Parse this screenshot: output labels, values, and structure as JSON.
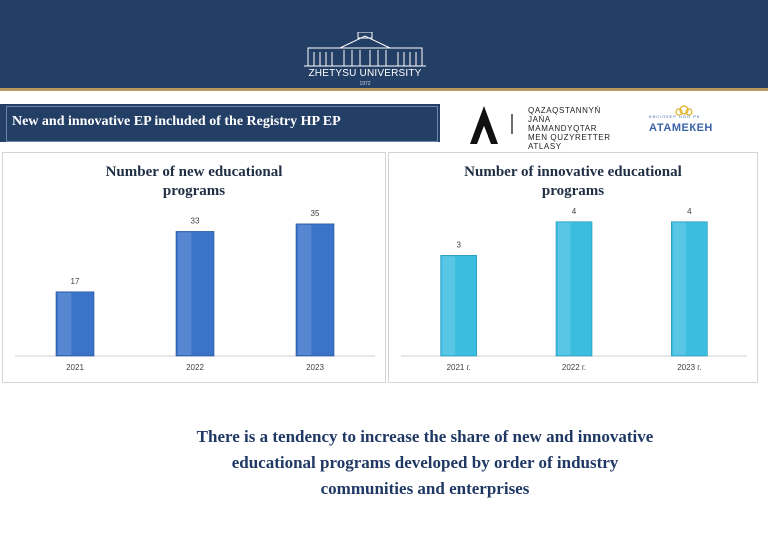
{
  "header": {
    "university_name": "ZHETYSU UNIVERSITY",
    "university_year": "1972",
    "colors": {
      "bar": "#243f66",
      "accent": "#b89a5e"
    }
  },
  "banner": {
    "title": "New and innovative EP  included of the Registry HP EP"
  },
  "partners": {
    "atlas_lines": [
      "QAZAQSTANNYŃ",
      "JAŃA",
      "MAMANDYQTAR",
      "MEN QUZYRETTER",
      "ATLASY"
    ],
    "atameken_top": "КӘСІПКЕР      НОО РК",
    "atameken_name": "АТАМЕКЕН"
  },
  "chart_data": [
    {
      "type": "bar",
      "title": "Number of new educational programs",
      "title_lines": [
        "Number of new educational",
        "programs"
      ],
      "categories": [
        "2021",
        "2022",
        "2023"
      ],
      "values": [
        17,
        33,
        35
      ],
      "ylim": [
        0,
        40
      ],
      "color": "#3a73c8",
      "grid": false,
      "legend": "none"
    },
    {
      "type": "bar",
      "title": "Number of innovative educational programs",
      "title_lines": [
        "Number of innovative educational",
        "programs"
      ],
      "categories": [
        "2021 г.",
        "2022 г.",
        "2023 г."
      ],
      "values": [
        3,
        4,
        4
      ],
      "ylim": [
        0,
        4.5
      ],
      "color": "#3bbde0",
      "grid": false,
      "legend": "none"
    }
  ],
  "conclusion": {
    "lines": [
      "There is a tendency to increase the share of new  and innovative",
      "educational programs  developed by order of industry",
      "communities and enterprises"
    ]
  }
}
